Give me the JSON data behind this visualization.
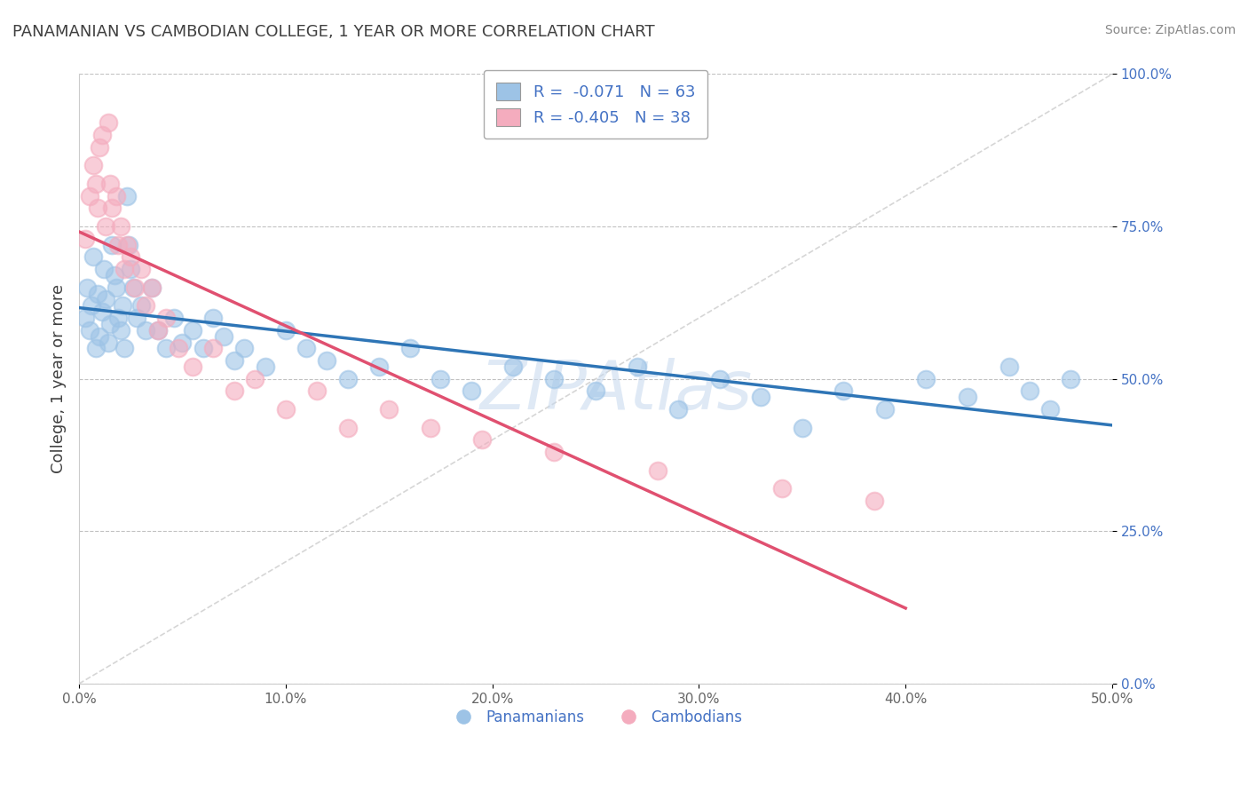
{
  "title": "PANAMANIAN VS CAMBODIAN COLLEGE, 1 YEAR OR MORE CORRELATION CHART",
  "source": "Source: ZipAtlas.com",
  "ylabel": "College, 1 year or more",
  "xlim": [
    0.0,
    0.5
  ],
  "ylim": [
    0.0,
    1.0
  ],
  "xticks": [
    0.0,
    0.1,
    0.2,
    0.3,
    0.4,
    0.5
  ],
  "xticklabels": [
    "0.0%",
    "10.0%",
    "20.0%",
    "30.0%",
    "40.0%",
    "50.0%"
  ],
  "yticks": [
    0.0,
    0.25,
    0.5,
    0.75,
    1.0
  ],
  "yticklabels": [
    "0.0%",
    "25.0%",
    "50.0%",
    "75.0%",
    "100.0%"
  ],
  "panamanian_color": "#9DC3E6",
  "cambodian_color": "#F4ACBE",
  "panamanian_line_color": "#2E75B6",
  "cambodian_line_color": "#E05070",
  "R_pan": -0.071,
  "N_pan": 63,
  "R_cam": -0.405,
  "N_cam": 38,
  "legend_pan_label": "Panamanians",
  "legend_cam_label": "Cambodians",
  "watermark": "ZIPAtlas",
  "background_color": "#FFFFFF",
  "grid_color": "#BBBBBB",
  "title_color": "#404040",
  "axis_label_color": "#404040",
  "tick_color": "#666666",
  "blue_color": "#4472C4",
  "panamanian_x": [
    0.003,
    0.004,
    0.005,
    0.006,
    0.007,
    0.008,
    0.009,
    0.01,
    0.011,
    0.012,
    0.013,
    0.014,
    0.015,
    0.016,
    0.017,
    0.018,
    0.019,
    0.02,
    0.021,
    0.022,
    0.023,
    0.024,
    0.025,
    0.026,
    0.028,
    0.03,
    0.032,
    0.035,
    0.038,
    0.042,
    0.046,
    0.05,
    0.055,
    0.06,
    0.065,
    0.07,
    0.075,
    0.08,
    0.09,
    0.1,
    0.11,
    0.12,
    0.13,
    0.145,
    0.16,
    0.175,
    0.19,
    0.21,
    0.23,
    0.25,
    0.27,
    0.29,
    0.31,
    0.33,
    0.35,
    0.37,
    0.39,
    0.41,
    0.43,
    0.45,
    0.46,
    0.47,
    0.48
  ],
  "panamanian_y": [
    0.6,
    0.65,
    0.58,
    0.62,
    0.7,
    0.55,
    0.64,
    0.57,
    0.61,
    0.68,
    0.63,
    0.56,
    0.59,
    0.72,
    0.67,
    0.65,
    0.6,
    0.58,
    0.62,
    0.55,
    0.8,
    0.72,
    0.68,
    0.65,
    0.6,
    0.62,
    0.58,
    0.65,
    0.58,
    0.55,
    0.6,
    0.56,
    0.58,
    0.55,
    0.6,
    0.57,
    0.53,
    0.55,
    0.52,
    0.58,
    0.55,
    0.53,
    0.5,
    0.52,
    0.55,
    0.5,
    0.48,
    0.52,
    0.5,
    0.48,
    0.52,
    0.45,
    0.5,
    0.47,
    0.42,
    0.48,
    0.45,
    0.5,
    0.47,
    0.52,
    0.48,
    0.45,
    0.5
  ],
  "cambodian_x": [
    0.003,
    0.005,
    0.007,
    0.008,
    0.009,
    0.01,
    0.011,
    0.013,
    0.014,
    0.015,
    0.016,
    0.018,
    0.019,
    0.02,
    0.022,
    0.023,
    0.025,
    0.027,
    0.03,
    0.032,
    0.035,
    0.038,
    0.042,
    0.048,
    0.055,
    0.065,
    0.075,
    0.085,
    0.1,
    0.115,
    0.13,
    0.15,
    0.17,
    0.195,
    0.23,
    0.28,
    0.34,
    0.385
  ],
  "cambodian_y": [
    0.73,
    0.8,
    0.85,
    0.82,
    0.78,
    0.88,
    0.9,
    0.75,
    0.92,
    0.82,
    0.78,
    0.8,
    0.72,
    0.75,
    0.68,
    0.72,
    0.7,
    0.65,
    0.68,
    0.62,
    0.65,
    0.58,
    0.6,
    0.55,
    0.52,
    0.55,
    0.48,
    0.5,
    0.45,
    0.48,
    0.42,
    0.45,
    0.42,
    0.4,
    0.38,
    0.35,
    0.32,
    0.3
  ]
}
